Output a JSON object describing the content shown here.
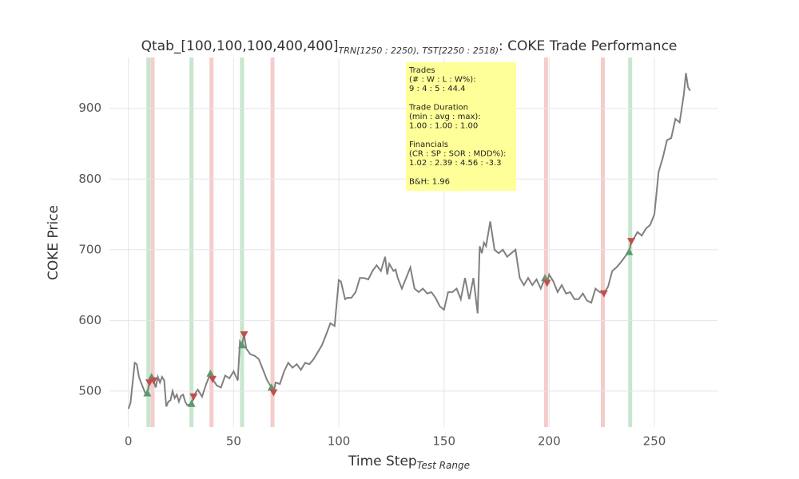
{
  "chart_data": {
    "type": "line",
    "title": {
      "main": "Qtab_[100,100,100,400,400]",
      "subscript": "TRN[1250 : 2250), TST[2250 : 2518)",
      "suffix": ": COKE Trade Performance"
    },
    "x_label": {
      "main": "Time Step",
      "subscript": "Test Range"
    },
    "y_label": "COKE Price",
    "xlim": [
      -9,
      280
    ],
    "ylim": [
      449,
      972
    ],
    "xticks": [
      0,
      50,
      100,
      150,
      200,
      250
    ],
    "yticks": [
      500,
      600,
      700,
      800,
      900
    ],
    "grid": true,
    "color": "#808080",
    "x": [
      0,
      1,
      3,
      4,
      5,
      6,
      8,
      9,
      10,
      11,
      12,
      13,
      14,
      15,
      16,
      17,
      18,
      19,
      20,
      21,
      22,
      23,
      24,
      25,
      26,
      27,
      28,
      30,
      31,
      32,
      33,
      35,
      37,
      39,
      40,
      42,
      44,
      46,
      48,
      50,
      52,
      53,
      54,
      55,
      56,
      58,
      60,
      62,
      64,
      66,
      68,
      69,
      70,
      72,
      74,
      76,
      78,
      80,
      82,
      84,
      86,
      88,
      90,
      92,
      94,
      96,
      98,
      100,
      101,
      103,
      104,
      106,
      108,
      110,
      112,
      114,
      116,
      118,
      120,
      122,
      123,
      124,
      126,
      127,
      128,
      130,
      132,
      134,
      136,
      138,
      140,
      142,
      144,
      146,
      148,
      150,
      152,
      154,
      156,
      158,
      160,
      162,
      164,
      166,
      167,
      168,
      169,
      170,
      172,
      174,
      176,
      178,
      180,
      182,
      184,
      186,
      188,
      190,
      192,
      194,
      196,
      198,
      199,
      200,
      202,
      204,
      206,
      208,
      210,
      212,
      214,
      216,
      218,
      220,
      222,
      224,
      226,
      228,
      230,
      232,
      234,
      236,
      238,
      239,
      240,
      242,
      244,
      246,
      248,
      250,
      252,
      254,
      256,
      258,
      260,
      262,
      264,
      265,
      266,
      267
    ],
    "values": [
      475,
      483,
      540,
      538,
      520,
      512,
      497,
      497,
      512,
      520,
      515,
      505,
      520,
      512,
      520,
      515,
      478,
      485,
      487,
      500,
      490,
      495,
      485,
      493,
      495,
      485,
      480,
      482,
      492,
      498,
      502,
      492,
      510,
      525,
      517,
      508,
      505,
      522,
      518,
      528,
      515,
      570,
      565,
      580,
      560,
      552,
      550,
      545,
      530,
      515,
      505,
      498,
      512,
      510,
      528,
      540,
      533,
      538,
      530,
      540,
      538,
      545,
      555,
      565,
      580,
      596,
      592,
      657,
      655,
      630,
      632,
      632,
      640,
      660,
      660,
      658,
      670,
      678,
      670,
      690,
      665,
      680,
      670,
      672,
      660,
      645,
      660,
      675,
      645,
      640,
      645,
      638,
      640,
      632,
      620,
      615,
      640,
      640,
      645,
      630,
      660,
      630,
      660,
      610,
      705,
      695,
      710,
      705,
      740,
      700,
      695,
      700,
      690,
      695,
      700,
      660,
      650,
      660,
      650,
      658,
      645,
      660,
      653,
      665,
      655,
      640,
      650,
      638,
      640,
      630,
      630,
      638,
      628,
      625,
      645,
      640,
      638,
      648,
      670,
      675,
      682,
      690,
      697,
      712,
      715,
      725,
      720,
      730,
      735,
      750,
      810,
      830,
      855,
      858,
      885,
      880,
      920,
      950,
      930,
      925
    ],
    "buy_signals": {
      "color": "#5b9a6b",
      "x": [
        9,
        11,
        30,
        39,
        54,
        68,
        198,
        238
      ],
      "values": [
        497,
        520,
        482,
        525,
        565,
        505,
        660,
        697
      ]
    },
    "sell_signals": {
      "color": "#c0504d",
      "x": [
        10,
        12,
        31,
        40,
        55,
        69,
        199,
        226,
        239
      ],
      "values": [
        512,
        515,
        492,
        517,
        580,
        498,
        653,
        638,
        712
      ]
    },
    "buy_spans": {
      "color": "#c8e6cf",
      "x": [
        9.5,
        30,
        54,
        238.5
      ]
    },
    "sell_spans": {
      "color": "#f5cccc",
      "x": [
        11.5,
        39.5,
        68.5,
        198.5,
        225.5
      ]
    },
    "annotation": [
      [
        "Trades",
        "(# : W : L : W%):",
        "9 : 4 : 5 : 44.4"
      ],
      [
        "Trade Duration",
        "(min : avg : max):",
        "1.00 : 1.00 : 1.00"
      ],
      [
        "Financials",
        "(CR : SP : SOR : MDD%):",
        "1.02 : 2.39 : 4.56 : -3.3"
      ],
      [
        "B&H: 1.96"
      ]
    ]
  }
}
